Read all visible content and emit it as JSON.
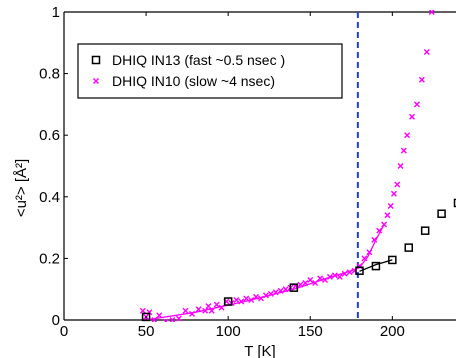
{
  "chart_data": {
    "type": "scatter",
    "xlabel": "T [K]",
    "ylabel": "<u²> [Å²]",
    "xlim": [
      0,
      240
    ],
    "ylim": [
      0,
      1
    ],
    "x_ticks": [
      0,
      50,
      100,
      150,
      200
    ],
    "y_ticks": [
      0,
      0.2,
      0.4,
      0.6,
      0.8,
      1
    ],
    "x_tick_labels": [
      "0",
      "50",
      "100",
      "150",
      "200"
    ],
    "y_tick_labels": [
      "0",
      "0.2",
      "0.4",
      "0.6",
      "0.8",
      "1"
    ],
    "legend": {
      "location": "upper-left"
    },
    "vline": {
      "x": 179,
      "color": "#1f3fd8",
      "style": "dashed"
    },
    "series": [
      {
        "name": "DHIQ IN13 (fast ~0.5 nsec )",
        "marker": "square",
        "color": "#000000",
        "points": [
          [
            50,
            0.01
          ],
          [
            100,
            0.06
          ],
          [
            140,
            0.105
          ],
          [
            180,
            0.16
          ],
          [
            190,
            0.175
          ],
          [
            200,
            0.195
          ],
          [
            210,
            0.235
          ],
          [
            220,
            0.29
          ],
          [
            230,
            0.345
          ],
          [
            240,
            0.38
          ]
        ],
        "fit": [
          [
            180,
            0.158
          ],
          [
            190,
            0.18
          ],
          [
            200,
            0.195
          ]
        ]
      },
      {
        "name": "DHIQ IN10 (slow ~4 nsec)",
        "marker": "x",
        "color": "#ff00ff",
        "points": [
          [
            48,
            0.03
          ],
          [
            50,
            0.01
          ],
          [
            52,
            0.025
          ],
          [
            55,
            0.0
          ],
          [
            58,
            0.015
          ],
          [
            62,
            -0.005
          ],
          [
            66,
            0.0
          ],
          [
            70,
            0.005
          ],
          [
            74,
            0.03
          ],
          [
            78,
            0.02
          ],
          [
            82,
            0.035
          ],
          [
            86,
            0.03
          ],
          [
            88,
            0.045
          ],
          [
            90,
            0.03
          ],
          [
            93,
            0.05
          ],
          [
            96,
            0.04
          ],
          [
            99,
            0.06
          ],
          [
            102,
            0.055
          ],
          [
            105,
            0.065
          ],
          [
            108,
            0.06
          ],
          [
            111,
            0.07
          ],
          [
            114,
            0.065
          ],
          [
            117,
            0.075
          ],
          [
            120,
            0.07
          ],
          [
            123,
            0.08
          ],
          [
            126,
            0.085
          ],
          [
            129,
            0.09
          ],
          [
            132,
            0.095
          ],
          [
            135,
            0.1
          ],
          [
            138,
            0.105
          ],
          [
            141,
            0.11
          ],
          [
            144,
            0.115
          ],
          [
            147,
            0.12
          ],
          [
            150,
            0.13
          ],
          [
            153,
            0.12
          ],
          [
            156,
            0.135
          ],
          [
            159,
            0.13
          ],
          [
            162,
            0.14
          ],
          [
            165,
            0.145
          ],
          [
            168,
            0.14
          ],
          [
            171,
            0.15
          ],
          [
            174,
            0.155
          ],
          [
            177,
            0.16
          ],
          [
            180,
            0.175
          ],
          [
            183,
            0.2
          ],
          [
            186,
            0.22
          ],
          [
            189,
            0.26
          ],
          [
            192,
            0.29
          ],
          [
            195,
            0.31
          ],
          [
            197,
            0.34
          ],
          [
            199,
            0.37
          ],
          [
            201,
            0.41
          ],
          [
            203,
            0.44
          ],
          [
            205,
            0.5
          ],
          [
            207,
            0.55
          ],
          [
            209,
            0.6
          ],
          [
            212,
            0.66
          ],
          [
            215,
            0.7
          ],
          [
            218,
            0.78
          ],
          [
            221,
            0.87
          ],
          [
            224,
            1.0
          ]
        ],
        "fit": [
          [
            50,
            0.0
          ],
          [
            80,
            0.025
          ],
          [
            110,
            0.06
          ],
          [
            140,
            0.1
          ],
          [
            160,
            0.135
          ],
          [
            175,
            0.16
          ],
          [
            180,
            0.17
          ],
          [
            185,
            0.205
          ],
          [
            190,
            0.26
          ],
          [
            195,
            0.31
          ]
        ]
      }
    ]
  }
}
